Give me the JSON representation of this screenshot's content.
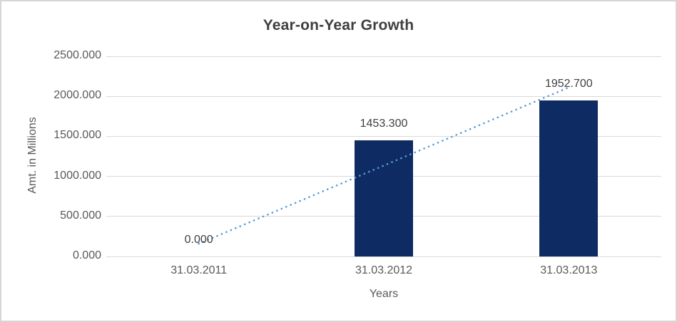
{
  "chart_data": {
    "type": "bar",
    "title": "Year-on-Year Growth",
    "xlabel": "Years",
    "ylabel": "Amt. in Millions",
    "categories": [
      "31.03.2011",
      "31.03.2012",
      "31.03.2013"
    ],
    "values": [
      0.0,
      1453.3,
      1952.7
    ],
    "data_labels": [
      "0.000",
      "1453.300",
      "1952.700"
    ],
    "ylim": [
      0,
      2500
    ],
    "ytick_step": 500,
    "ytick_labels": [
      "0.000",
      "500.000",
      "1000.000",
      "1500.000",
      "2000.000",
      "2500.000"
    ],
    "grid": true,
    "legend_position": "none",
    "trendline": {
      "type": "linear",
      "style": "dotted",
      "start_value": 159.0,
      "end_value": 2111.7
    }
  },
  "colors": {
    "bar": "#0f2b64",
    "trendline": "#5b9bd5",
    "gridline": "#d9d9d9",
    "chart_border": "#d6d6d6",
    "title_text": "#3f3f3f",
    "axis_text": "#595959",
    "data_label_text": "#404040"
  }
}
